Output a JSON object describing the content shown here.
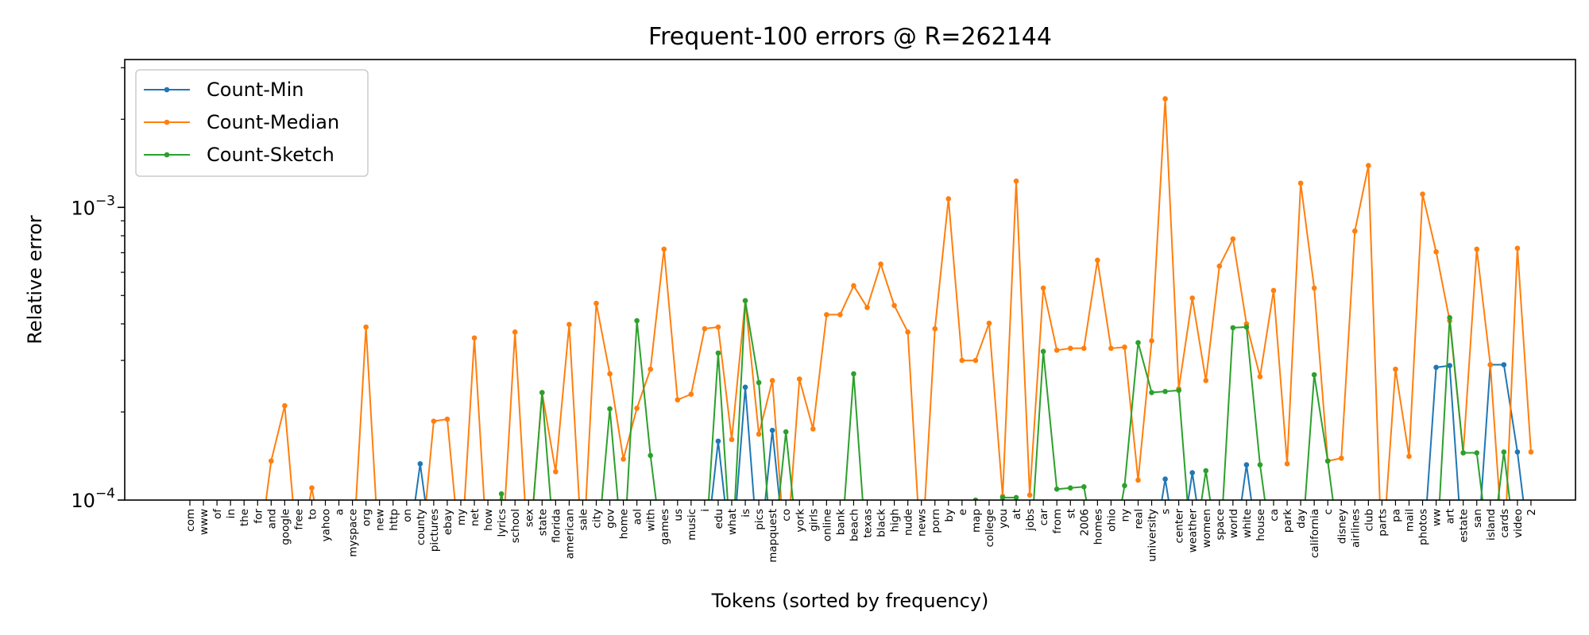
{
  "chart_data": {
    "type": "line",
    "title": "Frequent-100 errors @ R=262144",
    "xlabel": "Tokens (sorted by frequency)",
    "ylabel": "Relative error",
    "yscale": "log",
    "ylim": [
      0.0001,
      0.0032
    ],
    "yticks": [
      {
        "value": 0.0001,
        "base": "10",
        "exp": "−4"
      },
      {
        "value": 0.001,
        "base": "10",
        "exp": "−3"
      }
    ],
    "grid": false,
    "legend_position": "upper-left",
    "categories": [
      "com",
      "www",
      "of",
      "in",
      "the",
      "for",
      "and",
      "google",
      "free",
      "to",
      "yahoo",
      "a",
      "myspace",
      "org",
      "new",
      "http",
      "on",
      "county",
      "pictures",
      "ebay",
      "my",
      "net",
      "how",
      "lyrics",
      "school",
      "sex",
      "state",
      "florida",
      "american",
      "sale",
      "city",
      "gov",
      "home",
      "aol",
      "with",
      "games",
      "us",
      "music",
      "i",
      "edu",
      "what",
      "is",
      "pics",
      "mapquest",
      "co",
      "york",
      "girls",
      "online",
      "bank",
      "beach",
      "texas",
      "black",
      "high",
      "nude",
      "news",
      "porn",
      "by",
      "e",
      "map",
      "college",
      "you",
      "at",
      "jobs",
      "car",
      "from",
      "st",
      "2006",
      "homes",
      "ohio",
      "ny",
      "real",
      "university",
      "s",
      "center",
      "weather",
      "women",
      "space",
      "world",
      "white",
      "house",
      "ca",
      "park",
      "day",
      "california",
      "c",
      "disney",
      "airlines",
      "club",
      "parts",
      "pa",
      "mail",
      "photos",
      "ww",
      "art",
      "estate",
      "san",
      "island",
      "cards",
      "video",
      "2"
    ],
    "series": [
      {
        "name": "Count-Min",
        "color": "#1f77b4",
        "values": [
          0,
          0,
          0,
          0,
          0,
          0,
          0,
          0,
          0,
          0,
          0,
          0,
          0,
          0,
          0,
          0,
          0,
          0.000133,
          0,
          0,
          0,
          0,
          0,
          0,
          0,
          0,
          0,
          0,
          0,
          0,
          0,
          0,
          0,
          0,
          0,
          0,
          0,
          0,
          0,
          0.000159,
          0,
          0.000243,
          0,
          0.000173,
          0,
          0,
          0,
          0,
          0,
          0,
          0,
          0,
          0,
          0,
          0,
          0,
          0,
          0,
          0,
          0,
          0,
          0,
          0,
          0,
          0,
          0,
          0,
          0,
          0,
          0,
          0,
          0,
          0.000118,
          0,
          0.000124,
          0,
          0,
          0,
          0.000132,
          0,
          0,
          0,
          0,
          0,
          0,
          0,
          0,
          0,
          0,
          0,
          0,
          0,
          0.000284,
          0.000288,
          0,
          0,
          0.00029,
          0.00029,
          0.000146,
          0
        ]
      },
      {
        "name": "Count-Median",
        "color": "#ff7f0e",
        "values": [
          0,
          0,
          0,
          0,
          0,
          0,
          0.000136,
          0.00021,
          0,
          0.00011,
          0,
          0,
          0,
          0.00039,
          0,
          0,
          0,
          0,
          0.000186,
          0.000189,
          0,
          0.000358,
          0,
          0,
          0.000375,
          0,
          0.000233,
          0.000125,
          0.000398,
          0,
          0.00047,
          0.00027,
          0.000138,
          0.000206,
          0.00028,
          0.00072,
          0.00022,
          0.00023,
          0.000385,
          0.00039,
          0.000161,
          0.00048,
          0.000168,
          0.000256,
          0,
          0.000259,
          0.000175,
          0.00043,
          0.00043,
          0.00054,
          0.000455,
          0.00064,
          0.000462,
          0.000375,
          0,
          0.000385,
          0.00107,
          0.0003,
          0.0003,
          0.000402,
          0.000103,
          0.00123,
          0.000104,
          0.00053,
          0.000325,
          0.00033,
          0.00033,
          0.00066,
          0.00033,
          0.000333,
          0.000117,
          0.00035,
          0.00235,
          0.00024,
          0.00049,
          0.000256,
          0.00063,
          0.00078,
          0.0004,
          0.000264,
          0.00052,
          0.000133,
          0.00121,
          0.00053,
          0.000136,
          0.000139,
          0.00083,
          0.00139,
          0,
          0.00028,
          0.000141,
          0.00111,
          0.000705,
          0.00041,
          0.000145,
          0.00072,
          0.00029,
          0,
          0.000725,
          0.000146
        ]
      },
      {
        "name": "Count-Sketch",
        "color": "#2ca02c",
        "values": [
          0,
          0,
          0,
          0,
          0,
          0,
          0,
          0,
          0,
          0,
          0,
          0,
          0,
          0,
          0,
          0,
          0,
          0,
          0,
          0,
          0,
          0,
          0,
          0.000105,
          0,
          0,
          0.000233,
          0,
          0,
          0,
          0,
          0.000205,
          0,
          0.00041,
          0.000142,
          0,
          0,
          0,
          0,
          0.000318,
          0,
          0.00048,
          0.000252,
          0,
          0.000171,
          0,
          0,
          0,
          0,
          0.00027,
          0,
          0,
          0,
          0,
          0,
          0,
          0,
          0,
          0.0001,
          0,
          0.000102,
          0.000102,
          0,
          0.000322,
          0.000109,
          0.00011,
          0.000111,
          0,
          0,
          0.000112,
          0.000345,
          0.000233,
          0.000235,
          0.000237,
          0,
          0.000126,
          0,
          0.000388,
          0.00039,
          0.000132,
          0,
          0,
          0,
          0.000268,
          0.000136,
          0,
          0,
          0,
          0,
          0,
          0,
          0,
          0,
          0.00042,
          0.000145,
          0.000145,
          0,
          0.000146,
          0,
          0
        ]
      }
    ]
  }
}
